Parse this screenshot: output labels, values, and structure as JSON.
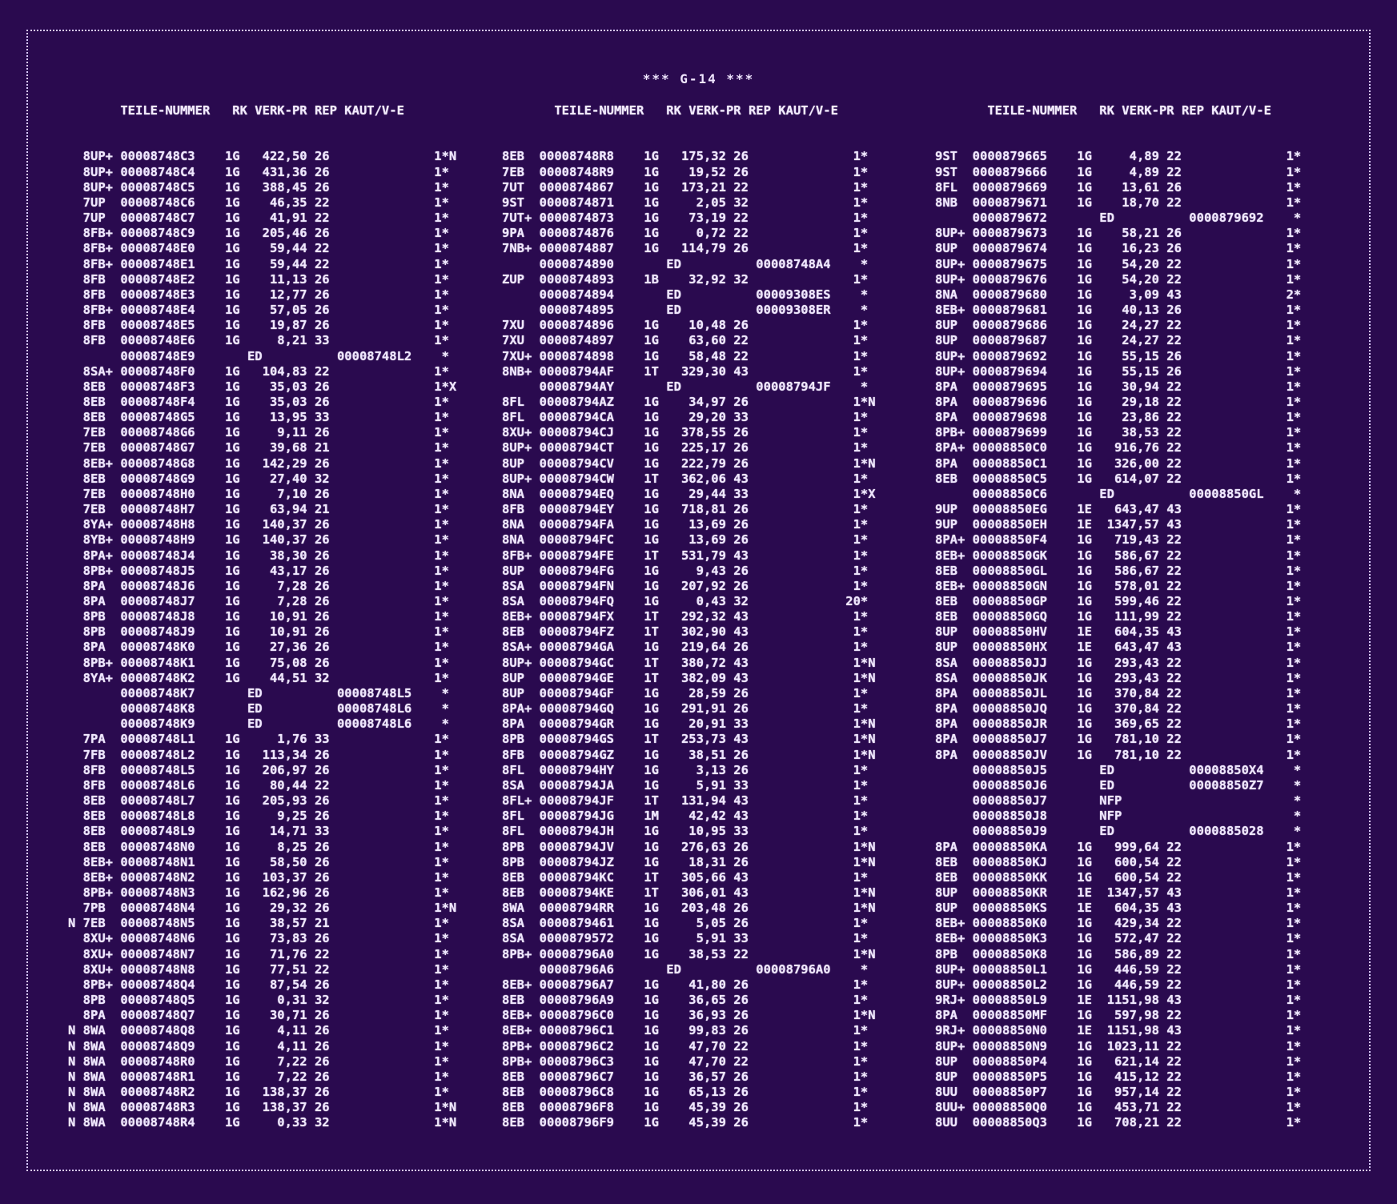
{
  "title": "*** G-14 ***",
  "columns": [
    {
      "header": "       TEILE-NUMMER   RK VERK-PR REP KAUT/V-E",
      "rows": [
        "",
        "",
        "  8UP+ 00008748C3    1G   422,50 26              1*N",
        "  8UP+ 00008748C4    1G   431,36 26              1*",
        "  8UP+ 00008748C5    1G   388,45 26              1*",
        "  7UP  00008748C6    1G    46,35 22              1*",
        "  7UP  00008748C7    1G    41,91 22              1*",
        "  8FB+ 00008748C9    1G   205,46 26              1*",
        "  8FB+ 00008748E0    1G    59,44 22              1*",
        "  8FB+ 00008748E1    1G    59,44 22              1*",
        "  8FB  00008748E2    1G    11,13 26              1*",
        "  8FB  00008748E3    1G    12,77 26              1*",
        "  8FB+ 00008748E4    1G    57,05 26              1*",
        "  8FB  00008748E5    1G    19,87 26              1*",
        "  8FB  00008748E6    1G     8,21 33              1*",
        "       00008748E9       ED          00008748L2    *",
        "  8SA+ 00008748F0    1G   104,83 22              1*",
        "  8EB  00008748F3    1G    35,03 26              1*X",
        "  8EB  00008748F4    1G    35,03 26              1*",
        "  8EB  00008748G5    1G    13,95 33              1*",
        "  7EB  00008748G6    1G     9,11 26              1*",
        "  7EB  00008748G7    1G    39,68 21              1*",
        "  8EB+ 00008748G8    1G   142,29 26              1*",
        "  8EB  00008748G9    1G    27,40 32              1*",
        "  7EB  00008748H0    1G     7,10 26              1*",
        "  7EB  00008748H7    1G    63,94 21              1*",
        "  8YA+ 00008748H8    1G   140,37 26              1*",
        "  8YB+ 00008748H9    1G   140,37 26              1*",
        "  8PA+ 00008748J4    1G    38,30 26              1*",
        "  8PB+ 00008748J5    1G    43,17 26              1*",
        "  8PA  00008748J6    1G     7,28 26              1*",
        "  8PA  00008748J7    1G     7,28 26              1*",
        "  8PB  00008748J8    1G    10,91 26              1*",
        "  8PB  00008748J9    1G    10,91 26              1*",
        "  8PA  00008748K0    1G    27,36 26              1*",
        "  8PB+ 00008748K1    1G    75,08 26              1*",
        "  8YA+ 00008748K2    1G    44,51 32              1*",
        "       00008748K7       ED          00008748L5    *",
        "       00008748K8       ED          00008748L6    *",
        "       00008748K9       ED          00008748L6    *",
        "  7PA  00008748L1    1G     1,76 33              1*",
        "  7FB  00008748L2    1G   113,34 26              1*",
        "  8FB  00008748L5    1G   206,97 26              1*",
        "  8FB  00008748L6    1G    80,44 22              1*",
        "  8EB  00008748L7    1G   205,93 26              1*",
        "  8EB  00008748L8    1G     9,25 26              1*",
        "  8EB  00008748L9    1G    14,71 33              1*",
        "  8EB  00008748N0    1G     8,25 26              1*",
        "  8EB+ 00008748N1    1G    58,50 26              1*",
        "  8EB+ 00008748N2    1G   103,37 26              1*",
        "  8PB+ 00008748N3    1G   162,96 26              1*",
        "  7PB  00008748N4    1G    29,32 26              1*N",
        "N 7EB  00008748N5    1G    38,57 21              1*",
        "  8XU+ 00008748N6    1G    73,83 26              1*",
        "  8XU+ 00008748N7    1G    71,76 22              1*",
        "  8XU+ 00008748N8    1G    77,51 22              1*",
        "  8PB+ 00008748Q4    1G    87,54 26              1*",
        "  8PB  00008748Q5    1G     0,31 32              1*",
        "  8PA  00008748Q7    1G    30,71 26              1*",
        "N 8WA  00008748Q8    1G     4,11 26              1*",
        "N 8WA  00008748Q9    1G     4,11 26              1*",
        "N 8WA  00008748R0    1G     7,22 26              1*",
        "N 8WA  00008748R1    1G     7,22 26              1*",
        "N 8WA  00008748R2    1G   138,37 26              1*",
        "N 8WA  00008748R3    1G   138,37 26              1*N",
        "N 8WA  00008748R4    1G     0,33 32              1*N"
      ]
    },
    {
      "header": "       TEILE-NUMMER   RK VERK-PR REP KAUT/V-E",
      "rows": [
        "",
        "",
        "8EB  00008748R8    1G   175,32 26              1*",
        "7EB  00008748R9    1G    19,52 26              1*",
        "7UT  0000874867    1G   173,21 22              1*",
        "9ST  0000874871    1G     2,05 32              1*",
        "7UT+ 0000874873    1G    73,19 22              1*",
        "9PA  0000874876    1G     0,72 22              1*",
        "7NB+ 0000874887    1G   114,79 26              1*",
        "     0000874890       ED          00008748A4    *",
        "ZUP  0000874893    1B    32,92 32              1*",
        "     0000874894       ED          00009308ES    *",
        "     0000874895       ED          00009308ER    *",
        "7XU  0000874896    1G    10,48 26              1*",
        "7XU  0000874897    1G    63,60 22              1*",
        "7XU+ 0000874898    1G    58,48 22              1*",
        "8NB+ 00008794AF    1T   329,30 43              1*",
        "     00008794AY       ED          00008794JF    *",
        "8FL  00008794AZ    1G    34,97 26              1*N",
        "8FL  00008794CA    1G    29,20 33              1*",
        "8XU+ 00008794CJ    1G   378,55 26              1*",
        "8UP+ 00008794CT    1G   225,17 26              1*",
        "8UP  00008794CV    1G   222,79 26              1*N",
        "8UP+ 00008794CW    1T   362,06 43              1*",
        "8NA  00008794EQ    1G    29,44 33              1*X",
        "8FB  00008794EY    1G   718,81 26              1*",
        "8NA  00008794FA    1G    13,69 26              1*",
        "8NA  00008794FC    1G    13,69 26              1*",
        "8FB+ 00008794FE    1T   531,79 43              1*",
        "8UP  00008794FG    1G     9,43 26              1*",
        "8SA  00008794FN    1G   207,92 26              1*",
        "8SA  00008794FQ    1G     0,43 32             20*",
        "8EB+ 00008794FX    1T   292,32 43              1*",
        "8EB  00008794FZ    1T   302,90 43              1*",
        "8SA+ 00008794GA    1G   219,64 26              1*",
        "8UP+ 00008794GC    1T   380,72 43              1*N",
        "8UP  00008794GE    1T   382,09 43              1*N",
        "8UP  00008794GF    1G    28,59 26              1*",
        "8PA+ 00008794GQ    1G   291,91 26              1*",
        "8PA  00008794GR    1G    20,91 33              1*N",
        "8PB  00008794GS    1T   253,73 43              1*N",
        "8FB  00008794GZ    1G    38,51 26              1*N",
        "8FL  00008794HY    1G     3,13 26              1*",
        "8SA  00008794JA    1G     5,91 33              1*",
        "8FL+ 00008794JF    1T   131,94 43              1*",
        "8FL  00008794JG    1M    42,42 43              1*",
        "8FL  00008794JH    1G    10,95 33              1*",
        "8PB  00008794JV    1G   276,63 26              1*N",
        "8PB  00008794JZ    1G    18,31 26              1*N",
        "8EB  00008794KC    1T   305,66 43              1*",
        "8EB  00008794KE    1T   306,01 43              1*N",
        "8WA  00008794RR    1G   203,48 26              1*N",
        "8SA  0000879461    1G     5,05 26              1*",
        "8SA  0000879572    1G     5,91 33              1*",
        "8PB+ 00008796A0    1G    38,53 22              1*N",
        "     00008796A6       ED          00008796A0    *",
        "8EB+ 00008796A7    1G    41,80 26              1*",
        "8EB  00008796A9    1G    36,65 26              1*",
        "8EB+ 00008796C0    1G    36,93 26              1*N",
        "8EB+ 00008796C1    1G    99,83 26              1*",
        "8PB+ 00008796C2    1G    47,70 22              1*",
        "8PB+ 00008796C3    1G    47,70 22              1*",
        "8EB  00008796C7    1G    36,57 26              1*",
        "8EB  00008796C8    1G    65,13 26              1*",
        "8EB  00008796F8    1G    45,39 26              1*",
        "8EB  00008796F9    1G    45,39 26              1*"
      ]
    },
    {
      "header": "       TEILE-NUMMER   RK VERK-PR REP KAUT/V-E",
      "rows": [
        "",
        "",
        "9ST  0000879665    1G     4,89 22              1*",
        "9ST  0000879666    1G     4,89 22              1*",
        "8FL  0000879669    1G    13,61 26              1*",
        "8NB  0000879671    1G    18,70 22              1*",
        "     0000879672       ED          0000879692    *",
        "8UP+ 0000879673    1G    58,21 26              1*",
        "8UP  0000879674    1G    16,23 26              1*",
        "8UP+ 0000879675    1G    54,20 22              1*",
        "8UP+ 0000879676    1G    54,20 22              1*",
        "8NA  0000879680    1G     3,09 43              2*",
        "8EB+ 0000879681    1G    40,13 26              1*",
        "8UP  0000879686    1G    24,27 22              1*",
        "8UP  0000879687    1G    24,27 22              1*",
        "8UP+ 0000879692    1G    55,15 26              1*",
        "8UP+ 0000879694    1G    55,15 26              1*",
        "8PA  0000879695    1G    30,94 22              1*",
        "8PA  0000879696    1G    29,18 22              1*",
        "8PA  0000879698    1G    23,86 22              1*",
        "8PB+ 0000879699    1G    38,53 22              1*",
        "8PA+ 00008850C0    1G   916,76 22              1*",
        "8PA  00008850C1    1G   326,00 22              1*",
        "8EB  00008850C5    1G   614,07 22              1*",
        "     00008850C6       ED          00008850GL    *",
        "9UP  00008850EG    1E   643,47 43              1*",
        "9UP  00008850EH    1E  1347,57 43              1*",
        "8PA+ 00008850F4    1G   719,43 22              1*",
        "8EB+ 00008850GK    1G   586,67 22              1*",
        "8EB  00008850GL    1G   586,67 22              1*",
        "8EB+ 00008850GN    1G   578,01 22              1*",
        "8EB  00008850GP    1G   599,46 22              1*",
        "8EB  00008850GQ    1G   111,99 22              1*",
        "8UP  00008850HV    1E   604,35 43              1*",
        "8UP  00008850HX    1E   643,47 43              1*",
        "8SA  00008850JJ    1G   293,43 22              1*",
        "8SA  00008850JK    1G   293,43 22              1*",
        "8PA  00008850JL    1G   370,84 22              1*",
        "8PA  00008850JQ    1G   370,84 22              1*",
        "8PA  00008850JR    1G   369,65 22              1*",
        "8PA  00008850J7    1G   781,10 22              1*",
        "8PA  00008850JV    1G   781,10 22              1*",
        "     00008850J5       ED          00008850X4    *",
        "     00008850J6       ED          00008850Z7    *",
        "     00008850J7       NFP                       *",
        "     00008850J8       NFP                       *",
        "     00008850J9       ED          0000885028    *",
        "8PA  00008850KA    1G   999,64 22              1*",
        "8EB  00008850KJ    1G   600,54 22              1*",
        "8EB  00008850KK    1G   600,54 22              1*",
        "8UP  00008850KR    1E  1347,57 43              1*",
        "8UP  00008850KS    1E   604,35 43              1*",
        "8EB+ 00008850K0    1G   429,34 22              1*",
        "8EB+ 00008850K3    1G   572,47 22              1*",
        "8PB  00008850K8    1G   586,89 22              1*",
        "8UP+ 00008850L1    1G   446,59 22              1*",
        "8UP+ 00008850L2    1G   446,59 22              1*",
        "9RJ+ 00008850L9    1E  1151,98 43              1*",
        "8PA  00008850MF    1G   597,98 22              1*",
        "9RJ+ 00008850N0    1E  1151,98 43              1*",
        "8UP+ 00008850N9    1G  1023,11 22              1*",
        "8UP  00008850P4    1G   621,14 22              1*",
        "8UP  00008850P5    1G   415,12 22              1*",
        "8UU  00008850P7    1G   957,14 22              1*",
        "8UU+ 00008850Q0    1G   453,71 22              1*",
        "8UU  00008850Q3    1G   708,21 22              1*"
      ]
    }
  ]
}
